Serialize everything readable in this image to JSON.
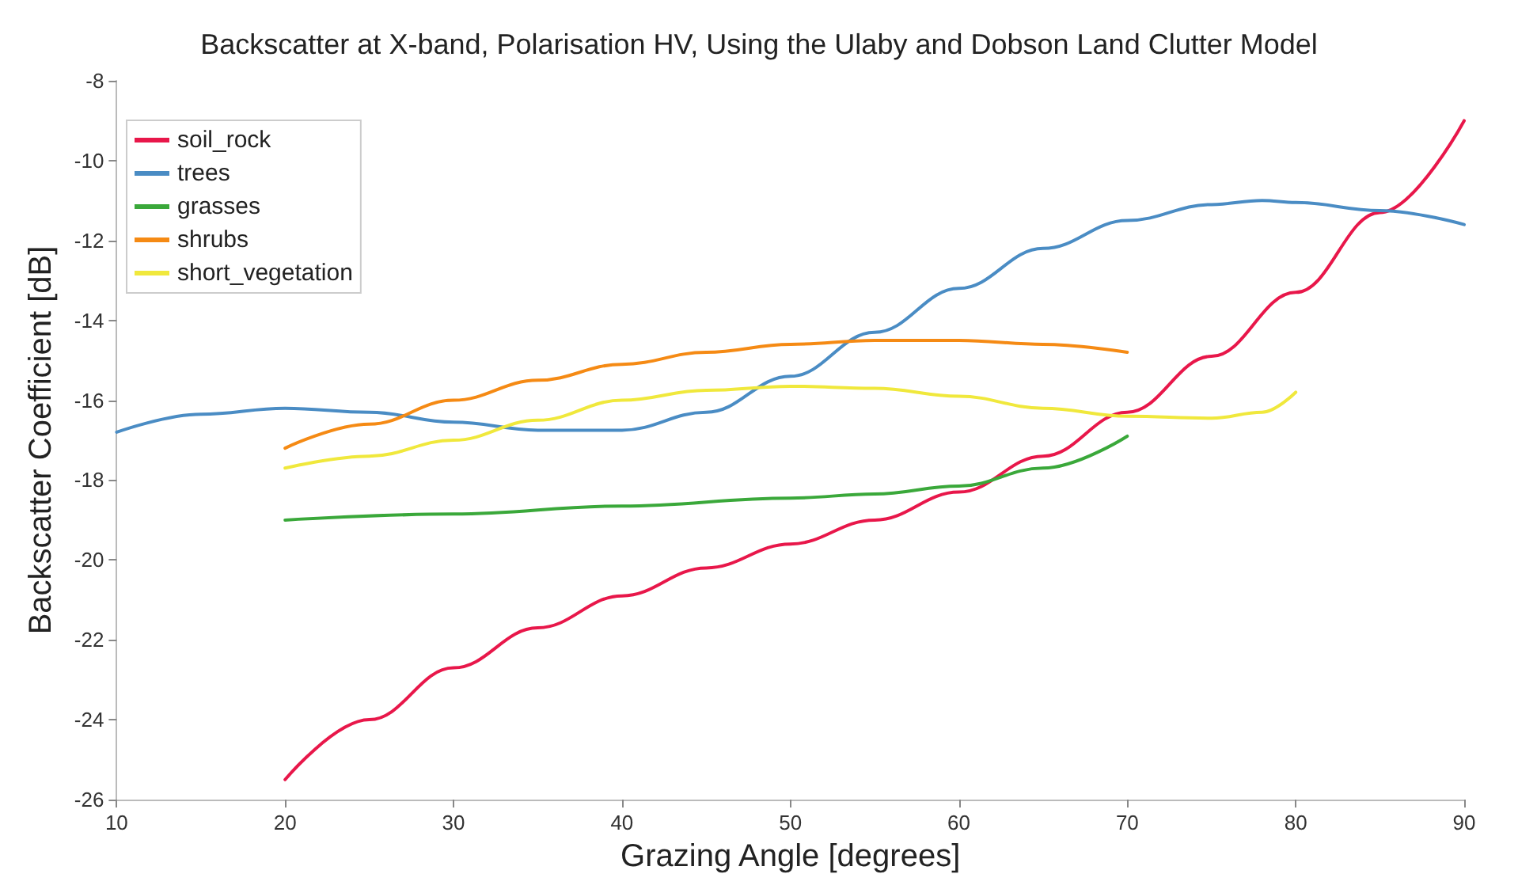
{
  "chart_data": {
    "type": "line",
    "title": "Backscatter at X-band, Polarisation HV, Using the Ulaby and Dobson Land Clutter Model",
    "xlabel": "Grazing Angle [degrees]",
    "ylabel": "Backscatter Coefficient [dB]",
    "xlim": [
      10,
      90
    ],
    "xticks": [
      10,
      20,
      30,
      40,
      50,
      60,
      70,
      80,
      90
    ],
    "ylim": [
      -26,
      -8
    ],
    "yticks": [
      -26,
      -24,
      -22,
      -20,
      -18,
      -16,
      -14,
      -12,
      -10,
      -8
    ],
    "grid": false,
    "legend": "top left",
    "marker": "none",
    "line_style": "solid",
    "series": [
      {
        "name": "soil_rock",
        "color": "#e8174a",
        "x": [
          20,
          25,
          30,
          35,
          40,
          45,
          50,
          55,
          60,
          65,
          70,
          75,
          80,
          85,
          90
        ],
        "values": [
          -25.5,
          -24.0,
          -22.7,
          -21.7,
          -20.9,
          -20.2,
          -19.6,
          -19.0,
          -18.3,
          -17.4,
          -16.3,
          -14.9,
          -13.3,
          -11.3,
          -9.0
        ]
      },
      {
        "name": "trees",
        "color": "#4a8cc4",
        "x": [
          10,
          15,
          20,
          25,
          30,
          35,
          40,
          45,
          50,
          55,
          60,
          65,
          70,
          75,
          78,
          80,
          85,
          90
        ],
        "values": [
          -16.8,
          -16.35,
          -16.2,
          -16.3,
          -16.55,
          -16.75,
          -16.75,
          -16.3,
          -15.4,
          -14.3,
          -13.2,
          -12.2,
          -11.5,
          -11.1,
          -11.0,
          -11.05,
          -11.25,
          -11.6
        ]
      },
      {
        "name": "grasses",
        "color": "#3aa83a",
        "x": [
          20,
          30,
          40,
          50,
          55,
          60,
          65,
          70
        ],
        "values": [
          -19.0,
          -18.85,
          -18.65,
          -18.45,
          -18.35,
          -18.15,
          -17.7,
          -16.9
        ]
      },
      {
        "name": "shrubs",
        "color": "#f58a14",
        "x": [
          20,
          25,
          30,
          35,
          40,
          45,
          50,
          55,
          60,
          65,
          70
        ],
        "values": [
          -17.2,
          -16.6,
          -16.0,
          -15.5,
          -15.1,
          -14.8,
          -14.6,
          -14.5,
          -14.5,
          -14.6,
          -14.8
        ]
      },
      {
        "name": "short_vegetation",
        "color": "#f0e83c",
        "x": [
          20,
          25,
          30,
          35,
          40,
          45,
          50,
          55,
          60,
          65,
          70,
          75,
          78,
          80
        ],
        "values": [
          -17.7,
          -17.4,
          -17.0,
          -16.5,
          -16.0,
          -15.75,
          -15.65,
          -15.7,
          -15.9,
          -16.2,
          -16.4,
          -16.45,
          -16.3,
          -15.8
        ]
      }
    ]
  }
}
